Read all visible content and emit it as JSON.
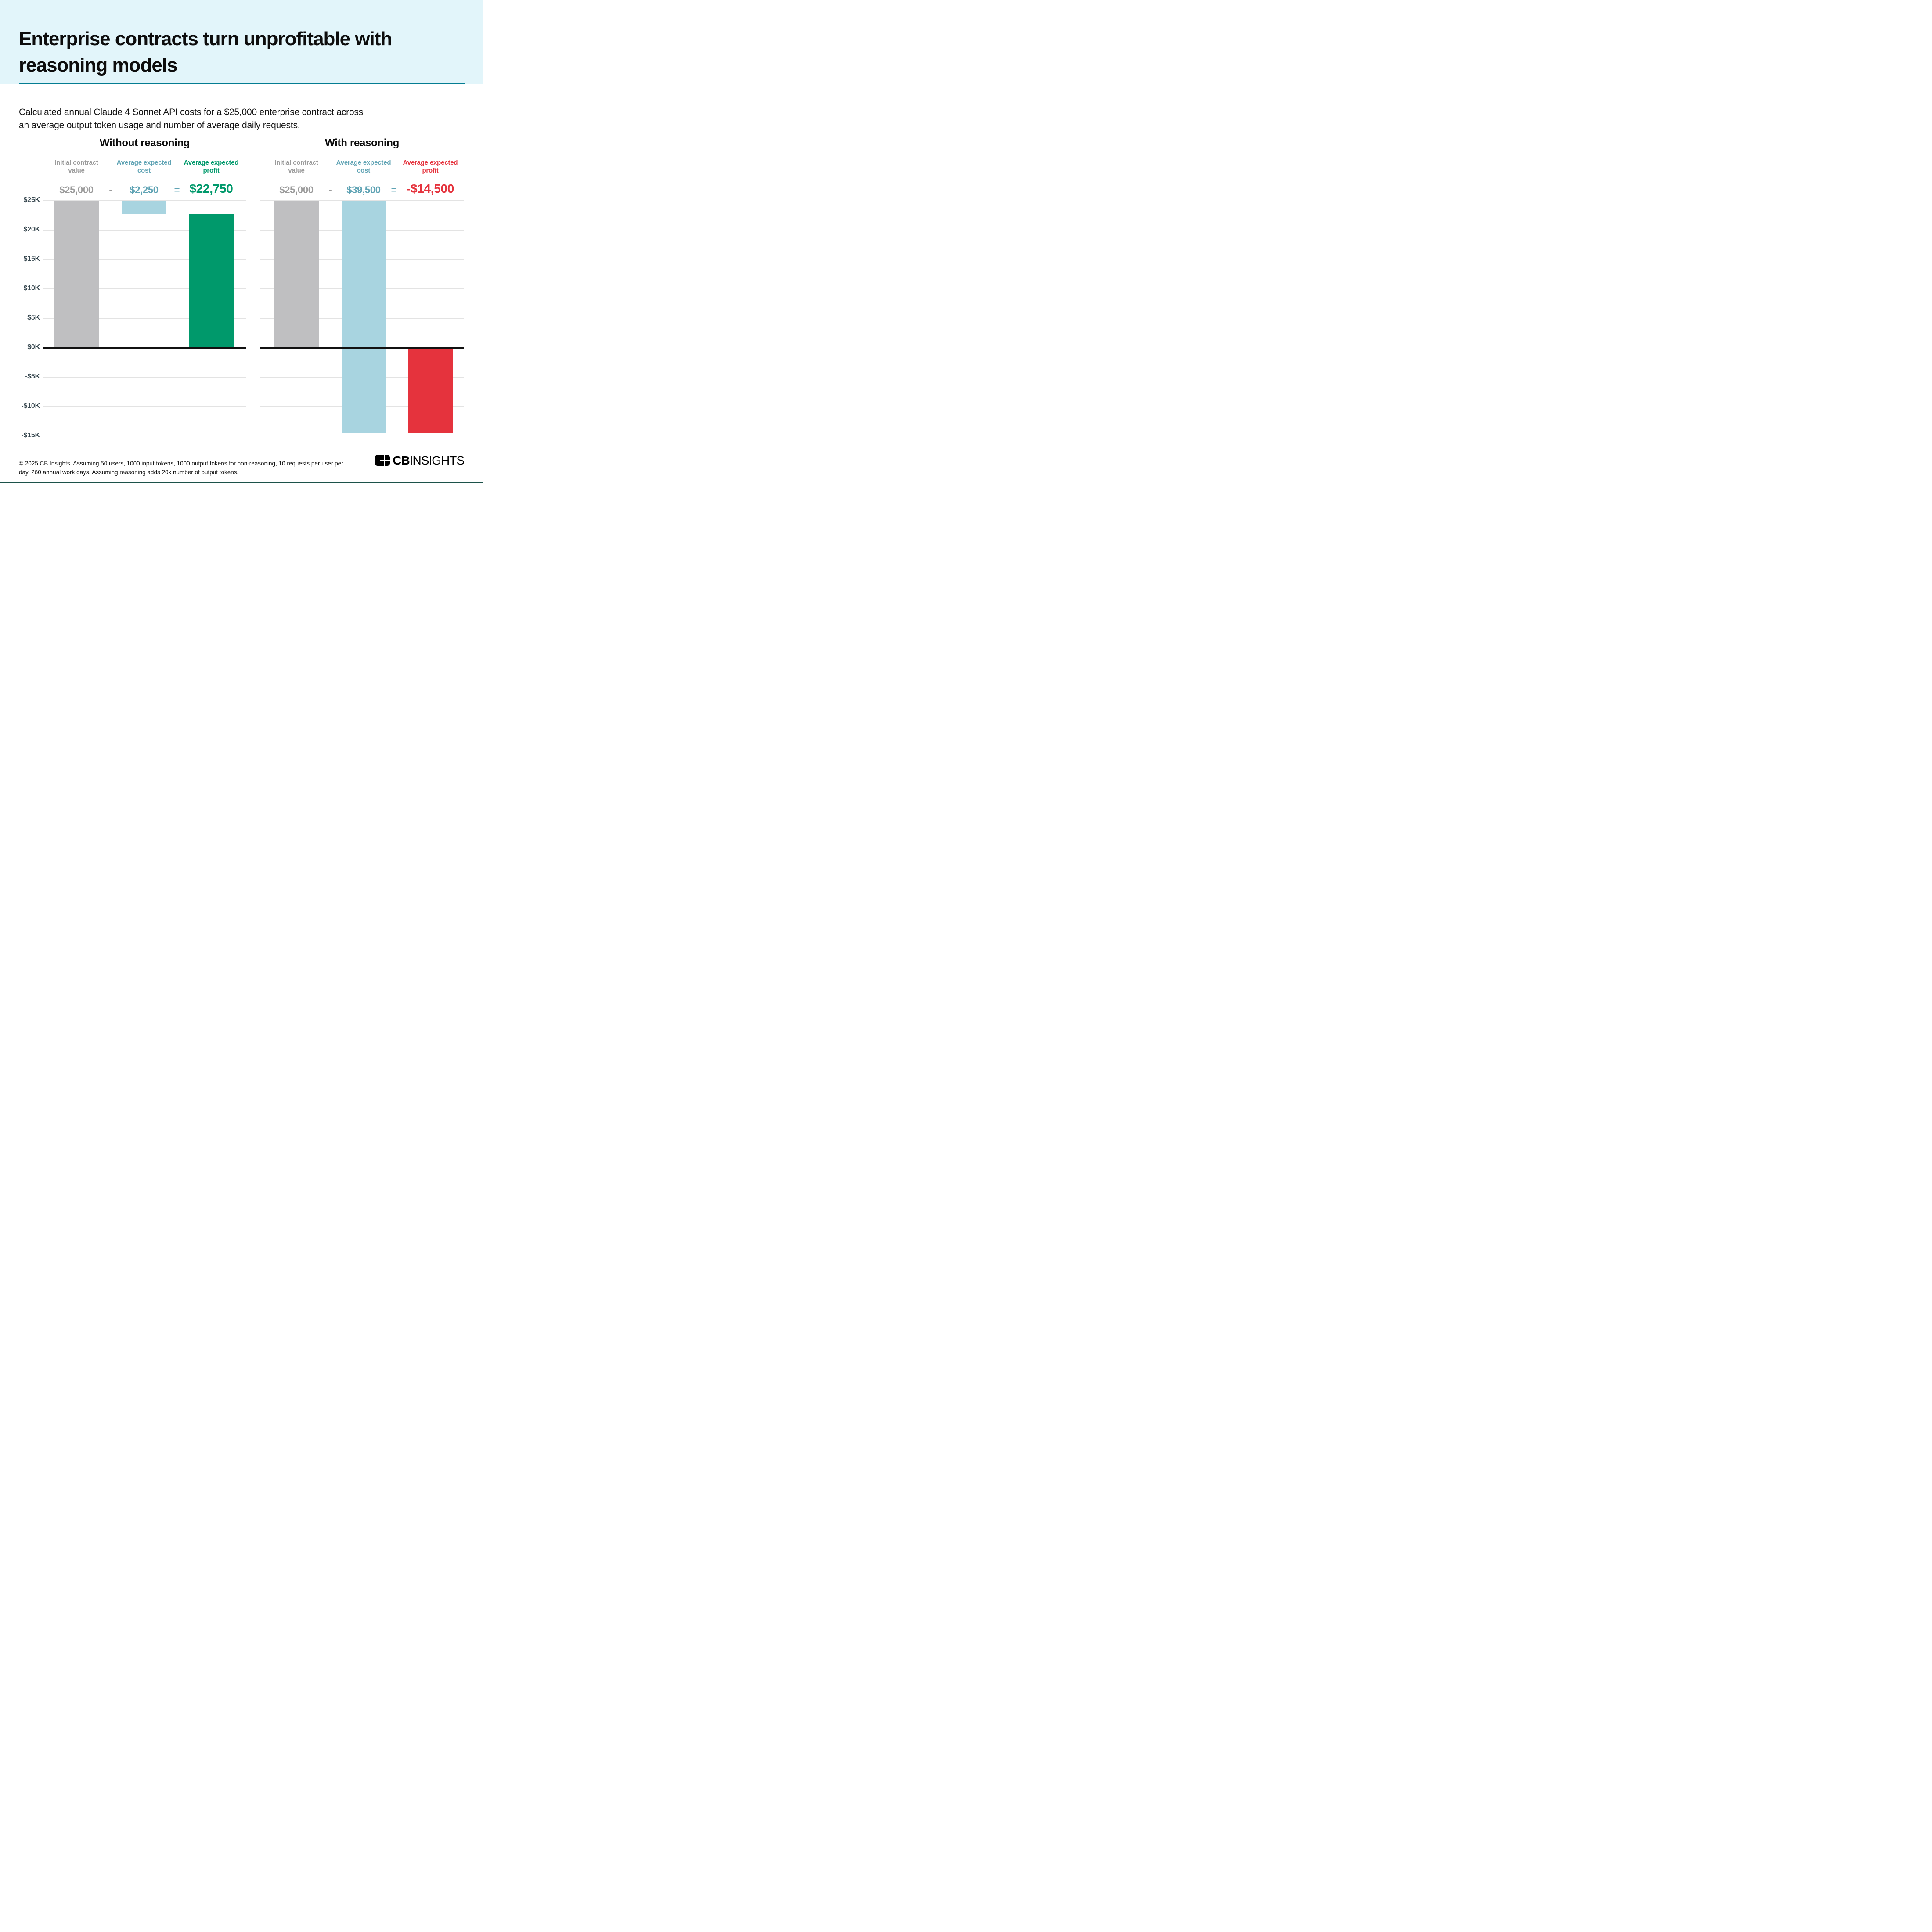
{
  "page": {
    "title_line1": "Enterprise contracts turn unprofitable with",
    "title_line2": "reasoning models",
    "subtitle_line1": "Calculated annual Claude 4 Sonnet API costs for a $25,000 enterprise contract across",
    "subtitle_line2": "an average output token usage and number of average daily requests.",
    "footnote_line1": "© 2025 CB Insights. Assuming 50 users, 1000 input tokens, 1000 output tokens for non-reasoning, 10 requests per user per",
    "footnote_line2": "day, 260 annual work days. Assuming reasoning adds 20x number of output tokens.",
    "logo_cb": "CB",
    "logo_insights": "INSIGHTS"
  },
  "colors": {
    "header_bg": "#e2f5fa",
    "rule_teal": "#047d92",
    "bar_gray": "#bfbfc1",
    "bar_blue": "#a8d4e0",
    "bar_green": "#00996b",
    "bar_red": "#e5333d",
    "label_gray": "#9b9b9b",
    "label_blue": "#5fa3b4",
    "label_green": "#00996b",
    "label_red": "#e5333d",
    "axis_label": "#37474f",
    "gridline": "#e3e3e3",
    "zero_line": "#111111"
  },
  "chart_data": {
    "type": "bar",
    "currency": "USD",
    "ylim": [
      -15000,
      25000
    ],
    "grid_step": 5000,
    "grid": true,
    "y_ticks": [
      {
        "value": 25000,
        "label": "$25K"
      },
      {
        "value": 20000,
        "label": "$20K"
      },
      {
        "value": 15000,
        "label": "$15K"
      },
      {
        "value": 10000,
        "label": "$10K"
      },
      {
        "value": 5000,
        "label": "$5K"
      },
      {
        "value": 0,
        "label": "$0K"
      },
      {
        "value": -5000,
        "label": "-$5K"
      },
      {
        "value": -10000,
        "label": "-$10K"
      },
      {
        "value": -15000,
        "label": "-$15K"
      }
    ],
    "panels": [
      {
        "title": "Without reasoning",
        "operators": {
          "minus": "-",
          "equals": "="
        },
        "columns": [
          {
            "label": "Initial contract value",
            "value": 25000,
            "value_label": "$25,000",
            "bar_from": 0,
            "bar_to": 25000,
            "color": "gray"
          },
          {
            "label": "Average expected cost",
            "value": 2250,
            "value_label": "$2,250",
            "bar_from": 22750,
            "bar_to": 25000,
            "color": "blue"
          },
          {
            "label": "Average expected profit",
            "value": 22750,
            "value_label": "$22,750",
            "bar_from": 0,
            "bar_to": 22750,
            "color": "green"
          }
        ]
      },
      {
        "title": "With reasoning",
        "operators": {
          "minus": "-",
          "equals": "="
        },
        "columns": [
          {
            "label": "Initial contract value",
            "value": 25000,
            "value_label": "$25,000",
            "bar_from": 0,
            "bar_to": 25000,
            "color": "gray"
          },
          {
            "label": "Average expected cost",
            "value": 39500,
            "value_label": "$39,500",
            "bar_from": -14500,
            "bar_to": 25000,
            "color": "blue"
          },
          {
            "label": "Average expected profit",
            "value": -14500,
            "value_label": "-$14,500",
            "bar_from": -14500,
            "bar_to": 0,
            "color": "red"
          }
        ]
      }
    ]
  }
}
